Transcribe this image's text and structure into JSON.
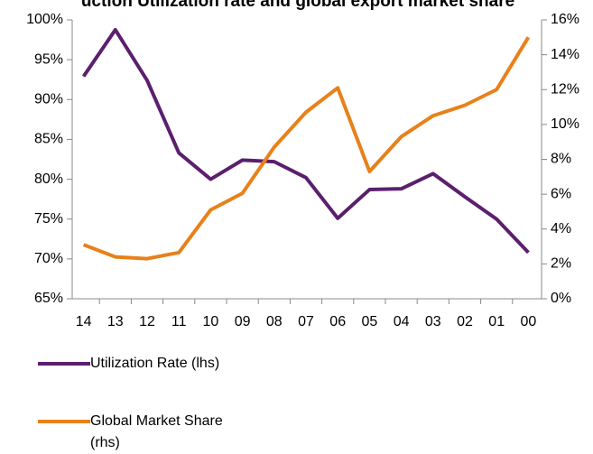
{
  "chart_data": {
    "type": "line",
    "title": "uction Utilization rate and global export market share",
    "categories": [
      "14",
      "13",
      "12",
      "11",
      "10",
      "09",
      "08",
      "07",
      "06",
      "05",
      "04",
      "03",
      "02",
      "01",
      "00"
    ],
    "series": [
      {
        "name": "Utilization Rate (lhs)",
        "color": "#5b1f6e",
        "values": [
          92.9,
          98.75,
          92.4,
          83.3,
          80.0,
          82.4,
          82.2,
          80.2,
          75.1,
          78.7,
          78.8,
          80.7,
          77.8,
          75.0,
          70.8
        ]
      },
      {
        "name": "Global Market Share (rhs)",
        "color": "#e8811a",
        "axis": "y2",
        "values": [
          3.1,
          2.4,
          2.3,
          2.65,
          5.1,
          6.05,
          8.7,
          10.7,
          12.1,
          7.3,
          9.3,
          10.5,
          11.1,
          12.0,
          15.0
        ]
      }
    ],
    "ylim": [
      65,
      100
    ],
    "yticks": [
      {
        "value": 65,
        "label": "65%"
      },
      {
        "value": 70,
        "label": "70%"
      },
      {
        "value": 75,
        "label": "75%"
      },
      {
        "value": 80,
        "label": "80%"
      },
      {
        "value": 85,
        "label": "85%"
      },
      {
        "value": 90,
        "label": "90%"
      },
      {
        "value": 95,
        "label": "95%"
      },
      {
        "value": 100,
        "label": "100%"
      }
    ],
    "y2lim": [
      0,
      16
    ],
    "y2ticks": [
      {
        "value": 0,
        "label": "0%"
      },
      {
        "value": 2,
        "label": "2%"
      },
      {
        "value": 4,
        "label": "4%"
      },
      {
        "value": 6,
        "label": "6%"
      },
      {
        "value": 8,
        "label": "8%"
      },
      {
        "value": 10,
        "label": "10%"
      },
      {
        "value": 12,
        "label": "12%"
      },
      {
        "value": 14,
        "label": "14%"
      },
      {
        "value": 16,
        "label": "16%"
      }
    ],
    "grid": false,
    "legend": "bottom"
  }
}
